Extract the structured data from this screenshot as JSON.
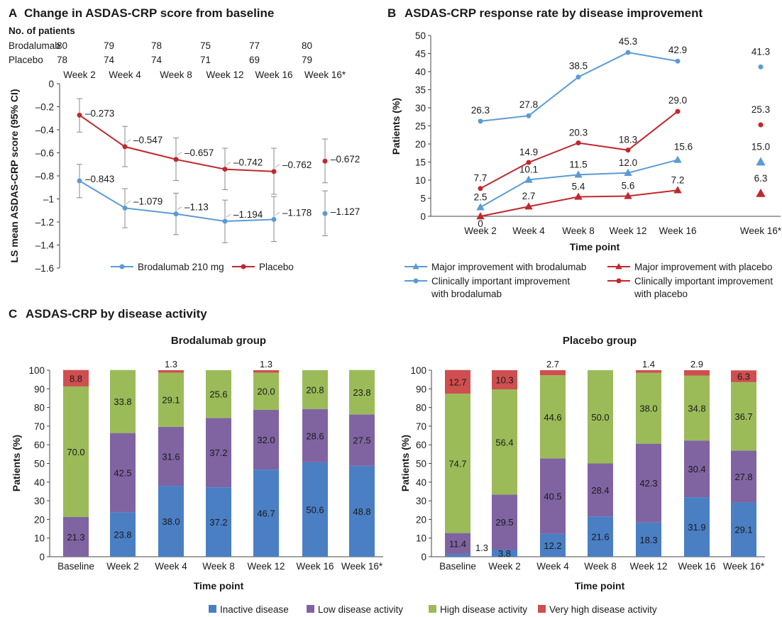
{
  "colors": {
    "brodalumab": "#5b9bd5",
    "placebo": "#c0282d",
    "inactive": "#4a7fc4",
    "low": "#8064a2",
    "high": "#9bbb59",
    "very_high": "#cf4e4f"
  },
  "chart_data": [
    {
      "id": "A",
      "type": "line",
      "panel_letter": "A",
      "title": "Change in ASDAS-CRP score from baseline",
      "patients_header": "No. of patients",
      "patients": [
        {
          "name": "Brodalumab",
          "values": [
            "80",
            "79",
            "78",
            "75",
            "77",
            "80"
          ]
        },
        {
          "name": "Placebo",
          "values": [
            "78",
            "74",
            "74",
            "71",
            "69",
            "79"
          ]
        }
      ],
      "categories": [
        "Week 2",
        "Week 4",
        "Week 8",
        "Week 12",
        "Week 16",
        "Week 16*"
      ],
      "ylabel": "LS mean ASDAS-CRP score (95% CI)",
      "ylim": [
        -1.6,
        0
      ],
      "yticks": [
        "0",
        "-0.2",
        "-0.4",
        "-0.6",
        "-0.8",
        "-1",
        "-1.2",
        "-1.4",
        "-1.6"
      ],
      "series": [
        {
          "name": "Brodalumab 210 mg",
          "color": "#5b9bd5",
          "values": [
            -0.843,
            -1.079,
            -1.13,
            -1.194,
            -1.178,
            -1.127
          ],
          "labels": [
            "–0.843",
            "–1.079",
            "–1.13",
            "–1.194",
            "–1.178",
            "–1.127"
          ],
          "ci_low": [
            -0.99,
            -1.25,
            -1.31,
            -1.38,
            -1.37,
            -1.32
          ],
          "ci_high": [
            -0.7,
            -0.91,
            -0.95,
            -1.01,
            -0.98,
            -0.93
          ]
        },
        {
          "name": "Placebo",
          "color": "#c0282d",
          "values": [
            -0.273,
            -0.547,
            -0.657,
            -0.742,
            -0.762,
            -0.672
          ],
          "labels": [
            "–0.273",
            "–0.547",
            "–0.657",
            "–0.742",
            "–0.762",
            "–0.672"
          ],
          "ci_low": [
            -0.42,
            -0.72,
            -0.84,
            -0.92,
            -0.96,
            -0.86
          ],
          "ci_high": [
            -0.13,
            -0.37,
            -0.47,
            -0.56,
            -0.56,
            -0.48
          ]
        }
      ]
    },
    {
      "id": "B",
      "type": "line",
      "panel_letter": "B",
      "title": "ASDAS-CRP response rate by disease improvement",
      "categories": [
        "Week 2",
        "Week 4",
        "Week 8",
        "Week 12",
        "Week 16",
        "Week 16*"
      ],
      "xlabel": "Time point",
      "ylabel": "Patients (%)",
      "ylim": [
        0,
        50
      ],
      "yticks": [
        "0",
        "5",
        "10",
        "15",
        "20",
        "25",
        "30",
        "35",
        "40",
        "45",
        "50"
      ],
      "series": [
        {
          "name": "Major improvement with brodalumab",
          "color": "#5b9bd5",
          "marker": "triangle",
          "values": [
            2.5,
            10.1,
            11.5,
            12.0,
            15.6,
            15.0
          ],
          "labels": [
            "2.5",
            "10.1",
            "11.5",
            "12.0",
            "15.6",
            "15.0"
          ]
        },
        {
          "name": "Clinically important improvement with brodalumab",
          "color": "#5b9bd5",
          "marker": "circle",
          "values": [
            26.3,
            27.8,
            38.5,
            45.3,
            42.9,
            41.3
          ],
          "labels": [
            "26.3",
            "27.8",
            "38.5",
            "45.3",
            "42.9",
            "41.3"
          ]
        },
        {
          "name": "Major improvement with placebo",
          "color": "#c0282d",
          "marker": "triangle",
          "values": [
            0,
            2.7,
            5.4,
            5.6,
            7.2,
            6.3
          ],
          "labels": [
            "0",
            "2.7",
            "5.4",
            "5.6",
            "7.2",
            "6.3"
          ]
        },
        {
          "name": "Clinically important improvement with placebo",
          "color": "#c0282d",
          "marker": "circle",
          "values": [
            7.7,
            14.9,
            20.3,
            18.3,
            29.0,
            25.3
          ],
          "labels": [
            "7.7",
            "14.9",
            "20.3",
            "18.3",
            "29.0",
            "25.3"
          ]
        }
      ],
      "legend": [
        {
          "label_lines": [
            "Major improvement with brodalumab"
          ],
          "color": "#5b9bd5",
          "marker": "triangle"
        },
        {
          "label_lines": [
            "Major improvement with placebo"
          ],
          "color": "#c0282d",
          "marker": "triangle"
        },
        {
          "label_lines": [
            "Clinically important improvement",
            "with brodalumab"
          ],
          "color": "#5b9bd5",
          "marker": "circle"
        },
        {
          "label_lines": [
            "Clinically important improvement",
            "with placebo"
          ],
          "color": "#c0282d",
          "marker": "circle"
        }
      ]
    },
    {
      "id": "C1",
      "type": "bar",
      "stacked": true,
      "panel_letter": "C",
      "panel_title": "ASDAS-CRP by disease activity",
      "title": "Brodalumab group",
      "categories": [
        "Baseline",
        "Week 2",
        "Week 4",
        "Week 8",
        "Week 12",
        "Week 16",
        "Week 16*"
      ],
      "xlabel": "Time point",
      "ylabel": "Patients (%)",
      "ylim": [
        0,
        100
      ],
      "yticks": [
        "0",
        "10",
        "20",
        "30",
        "40",
        "50",
        "60",
        "70",
        "80",
        "90",
        "100"
      ],
      "series": [
        {
          "name": "Inactive disease",
          "values": [
            0,
            23.8,
            38.0,
            37.2,
            46.7,
            50.6,
            48.8
          ],
          "labels": [
            "",
            "23.8",
            "38.0",
            "37.2",
            "46.7",
            "50.6",
            "48.8"
          ]
        },
        {
          "name": "Low disease activity",
          "values": [
            21.3,
            42.5,
            31.6,
            37.2,
            32.0,
            28.6,
            27.5
          ],
          "labels": [
            "21.3",
            "42.5",
            "31.6",
            "37.2",
            "32.0",
            "28.6",
            "27.5"
          ]
        },
        {
          "name": "High disease activity",
          "values": [
            70.0,
            33.8,
            29.1,
            25.6,
            20.0,
            20.8,
            23.8
          ],
          "labels": [
            "70.0",
            "33.8",
            "29.1",
            "25.6",
            "20.0",
            "20.8",
            "23.8"
          ]
        },
        {
          "name": "Very high disease activity",
          "values": [
            8.8,
            0,
            1.3,
            0,
            1.3,
            0,
            0
          ],
          "labels": [
            "8.8",
            "",
            "1.3",
            "",
            "1.3",
            "",
            ""
          ],
          "outside": [
            false,
            false,
            true,
            false,
            true,
            false,
            false
          ]
        }
      ]
    },
    {
      "id": "C2",
      "type": "bar",
      "stacked": true,
      "title": "Placebo group",
      "categories": [
        "Baseline",
        "Week 2",
        "Week 4",
        "Week 8",
        "Week 12",
        "Week 16",
        "Week 16*"
      ],
      "xlabel": "Time point",
      "ylabel": "Patients (%)",
      "ylim": [
        0,
        100
      ],
      "yticks": [
        "0",
        "10",
        "20",
        "30",
        "40",
        "50",
        "60",
        "70",
        "80",
        "90",
        "100"
      ],
      "series": [
        {
          "name": "Inactive disease",
          "values": [
            1.3,
            3.8,
            12.2,
            21.6,
            18.3,
            31.9,
            29.1
          ],
          "labels": [
            "1.3",
            "3.8",
            "12.2",
            "21.6",
            "18.3",
            "31.9",
            "29.1"
          ],
          "outside": [
            true,
            false,
            false,
            false,
            false,
            false,
            false
          ]
        },
        {
          "name": "Low disease activity",
          "values": [
            11.4,
            29.5,
            40.5,
            28.4,
            42.3,
            30.4,
            27.8
          ],
          "labels": [
            "11.4",
            "29.5",
            "40.5",
            "28.4",
            "42.3",
            "30.4",
            "27.8"
          ]
        },
        {
          "name": "High disease activity",
          "values": [
            74.7,
            56.4,
            44.6,
            50.0,
            38.0,
            34.8,
            36.7
          ],
          "labels": [
            "74.7",
            "56.4",
            "44.6",
            "50.0",
            "38.0",
            "34.8",
            "36.7"
          ]
        },
        {
          "name": "Very high disease activity",
          "values": [
            12.7,
            10.3,
            2.7,
            0,
            1.4,
            2.9,
            6.3
          ],
          "labels": [
            "12.7",
            "10.3",
            "2.7",
            "",
            "1.4",
            "2.9",
            "6.3"
          ],
          "outside": [
            false,
            false,
            true,
            false,
            true,
            true,
            false
          ]
        }
      ]
    }
  ],
  "legend_c": [
    "Inactive disease",
    "Low disease activity",
    "High disease activity",
    "Very high disease activity"
  ]
}
